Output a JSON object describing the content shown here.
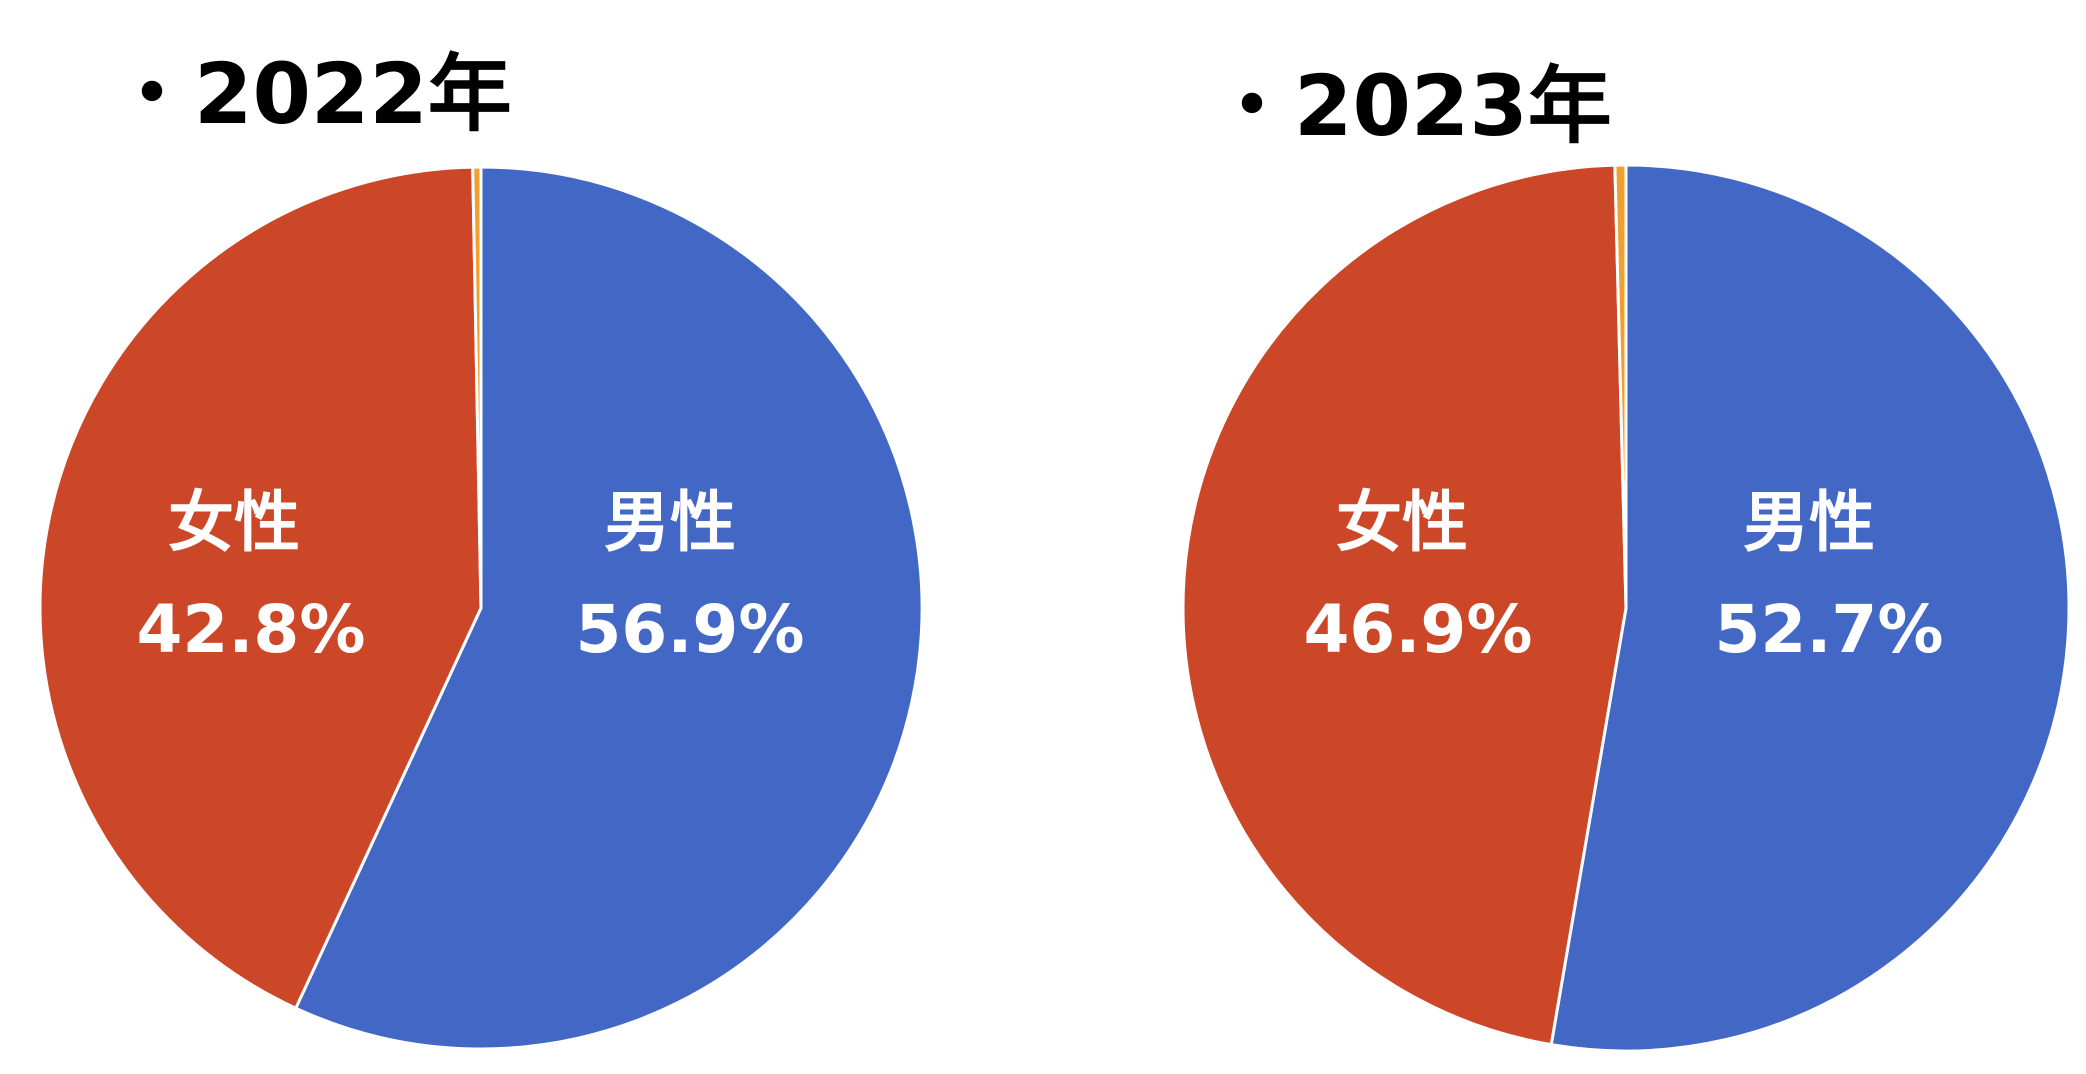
{
  "chart_data": [
    {
      "type": "pie",
      "title": "・2022年",
      "categories": [
        "男性",
        "女性",
        null
      ],
      "values": [
        56.9,
        42.8,
        0.3
      ],
      "value_labels": [
        "56.9%",
        "42.8%",
        null
      ],
      "colors": [
        "#4267c5",
        "#cb4727",
        "#f0a030"
      ]
    },
    {
      "type": "pie",
      "title": "・2023年",
      "categories": [
        "男性",
        "女性",
        null
      ],
      "values": [
        52.7,
        46.9,
        0.4
      ],
      "value_labels": [
        "52.7%",
        "46.9%",
        null
      ],
      "colors": [
        "#4267c5",
        "#cb4727",
        "#f0a030"
      ]
    }
  ]
}
